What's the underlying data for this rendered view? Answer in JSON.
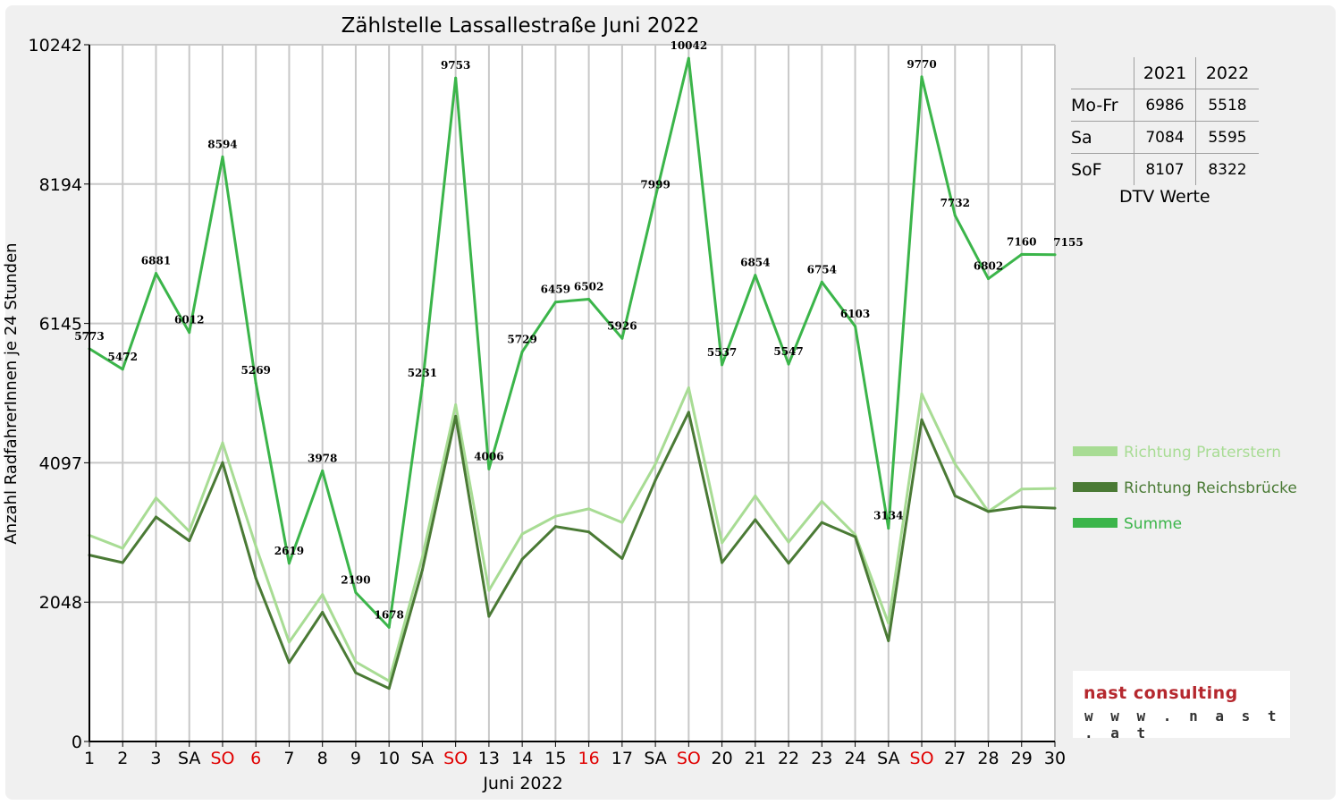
{
  "chart_data": {
    "type": "line",
    "title": "Zählstelle Lassallestraße Juni 2022",
    "xlabel": "Juni 2022",
    "ylabel": "Anzahl RadfahrerInnen je 24 Stunden",
    "ylim": [
      0,
      10242
    ],
    "yticks": [
      "0",
      "2048",
      "4097",
      "6145",
      "8194",
      "10242"
    ],
    "ytick_values": [
      0,
      2048,
      4097,
      6145,
      8194,
      10242
    ],
    "categories": [
      "1",
      "2",
      "3",
      "SA",
      "SO",
      "6",
      "7",
      "8",
      "9",
      "10",
      "SA",
      "SO",
      "13",
      "14",
      "15",
      "16",
      "17",
      "SA",
      "SO",
      "20",
      "21",
      "22",
      "23",
      "24",
      "SA",
      "SO",
      "27",
      "28",
      "29",
      "30"
    ],
    "red_categories": [
      4,
      5,
      11,
      15,
      18,
      25
    ],
    "grid": true,
    "legend_position": "right",
    "series": [
      {
        "name": "Richtung Praterstern",
        "color": "#a8dc94",
        "values": [
          3030,
          2840,
          3580,
          3090,
          4390,
          2870,
          1460,
          2160,
          1170,
          890,
          2710,
          4950,
          2220,
          3050,
          3310,
          3420,
          3220,
          4080,
          5200,
          2920,
          3610,
          2930,
          3530,
          3040,
          1740,
          5110,
          4080,
          3380,
          3710,
          3720
        ]
      },
      {
        "name": "Richtung Reichsbrücke",
        "color": "#4a7a35",
        "values": [
          2740,
          2630,
          3300,
          2950,
          4100,
          2400,
          1160,
          1900,
          1010,
          780,
          2520,
          4780,
          1840,
          2680,
          3160,
          3080,
          2690,
          3840,
          4840,
          2630,
          3260,
          2620,
          3220,
          3010,
          1480,
          4730,
          3610,
          3380,
          3450,
          3430
        ]
      },
      {
        "name": "Summe",
        "color": "#3bb54a",
        "values": [
          5773,
          5472,
          6881,
          6012,
          8594,
          5269,
          2619,
          3978,
          2190,
          1678,
          5231,
          9753,
          4006,
          5729,
          6459,
          6502,
          5926,
          7999,
          10042,
          5537,
          6854,
          5547,
          6754,
          6103,
          3134,
          9770,
          7732,
          6802,
          7160,
          7155
        ]
      }
    ],
    "data_labels": [
      "5773",
      "5472",
      "6881",
      "6012",
      "8594",
      "5269",
      "2619",
      "3978",
      "2190",
      "1678",
      "5231",
      "9753",
      "4006",
      "5729",
      "6459",
      "6502",
      "5926",
      "7999",
      "10042",
      "5537",
      "6854",
      "5547",
      "6754",
      "6103",
      "3134",
      "9770",
      "7732",
      "6802",
      "7160",
      "7155"
    ]
  },
  "dtv_table": {
    "header": [
      "",
      "2021",
      "2022"
    ],
    "rows": [
      {
        "label": "Mo-Fr",
        "v2021": "6986",
        "v2022": "5518"
      },
      {
        "label": "Sa",
        "v2021": "7084",
        "v2022": "5595"
      },
      {
        "label": "SoF",
        "v2021": "8107",
        "v2022": "8322"
      }
    ],
    "caption": "DTV Werte"
  },
  "logo": {
    "name": "nast consulting",
    "url": "w w w . n a s t . a t"
  }
}
